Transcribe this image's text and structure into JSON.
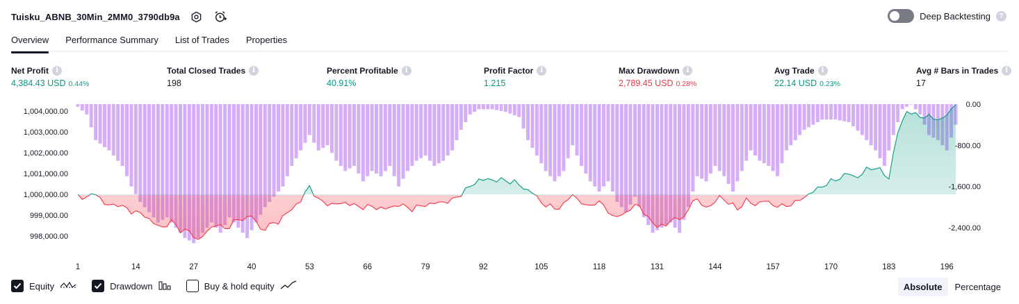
{
  "header": {
    "strategy_title": "Tuisku_ABNB_30Min_2MM0_3790db9a",
    "settings_icon": "gear-icon",
    "alert_icon": "alarm-clock-plus-icon",
    "deep_backtesting_label": "Deep Backtesting",
    "deep_backtesting_on": false,
    "help_icon": "question-icon"
  },
  "tabs": [
    {
      "label": "Overview",
      "active": true
    },
    {
      "label": "Performance Summary",
      "active": false
    },
    {
      "label": "List of Trades",
      "active": false
    },
    {
      "label": "Properties",
      "active": false
    }
  ],
  "metrics": [
    {
      "label": "Net Profit",
      "value": "4,384.43 USD",
      "pct": "0.44%",
      "color": "green"
    },
    {
      "label": "Total Closed Trades",
      "value": "198",
      "pct": "",
      "color": "dark"
    },
    {
      "label": "Percent Profitable",
      "value": "40.91%",
      "pct": "",
      "color": "green"
    },
    {
      "label": "Profit Factor",
      "value": "1.215",
      "pct": "",
      "color": "green"
    },
    {
      "label": "Max Drawdown",
      "value": "2,789.45 USD",
      "pct": "0.28%",
      "color": "red"
    },
    {
      "label": "Avg Trade",
      "value": "22.14 USD",
      "pct": "0.23%",
      "color": "green"
    },
    {
      "label": "Avg # Bars in Trades",
      "value": "17",
      "pct": "",
      "color": "dark"
    }
  ],
  "chart_data": {
    "type": "area",
    "left_axis": {
      "ticks": [
        "1,004,000.00",
        "1,003,000.00",
        "1,002,000.00",
        "1,001,000.00",
        "1,000,000.00",
        "999,000.00",
        "998,000.00"
      ],
      "values": [
        1004000,
        1003000,
        1002000,
        1001000,
        1000000,
        999000,
        998000
      ]
    },
    "right_axis": {
      "ticks": [
        "0.00",
        "-800.00",
        "-1,600.00",
        "-2,400.00"
      ],
      "values": [
        0,
        -800,
        -1600,
        -2400
      ]
    },
    "x_axis": {
      "ticks": [
        "1",
        "14",
        "27",
        "40",
        "53",
        "66",
        "79",
        "92",
        "105",
        "118",
        "131",
        "144",
        "157",
        "170",
        "183",
        "196"
      ],
      "values": [
        1,
        14,
        27,
        40,
        53,
        66,
        79,
        92,
        105,
        118,
        131,
        144,
        157,
        170,
        183,
        196
      ],
      "range": [
        1,
        198
      ]
    },
    "baseline": 1000000,
    "colors": {
      "profit": "#089981",
      "loss": "#f23645",
      "drawdown": "#c58df5"
    },
    "series": [
      {
        "name": "Equity",
        "anchors": [
          [
            1,
            1000000
          ],
          [
            3,
            999800
          ],
          [
            5,
            1000100
          ],
          [
            7,
            999500
          ],
          [
            10,
            999500
          ],
          [
            13,
            999200
          ],
          [
            16,
            999000
          ],
          [
            18,
            998600
          ],
          [
            20,
            998400
          ],
          [
            22,
            998700
          ],
          [
            24,
            998300
          ],
          [
            26,
            998200
          ],
          [
            28,
            997800
          ],
          [
            30,
            998200
          ],
          [
            32,
            998600
          ],
          [
            34,
            998300
          ],
          [
            36,
            998700
          ],
          [
            38,
            998800
          ],
          [
            40,
            999000
          ],
          [
            42,
            998300
          ],
          [
            44,
            998500
          ],
          [
            46,
            998700
          ],
          [
            48,
            999100
          ],
          [
            51,
            999700
          ],
          [
            53,
            1000400
          ],
          [
            55,
            999700
          ],
          [
            58,
            999500
          ],
          [
            61,
            999600
          ],
          [
            64,
            999400
          ],
          [
            67,
            999400
          ],
          [
            70,
            999300
          ],
          [
            73,
            999500
          ],
          [
            76,
            999300
          ],
          [
            79,
            999500
          ],
          [
            82,
            999600
          ],
          [
            85,
            999700
          ],
          [
            88,
            1000200
          ],
          [
            91,
            1000700
          ],
          [
            95,
            1000700
          ],
          [
            99,
            1000600
          ],
          [
            101,
            1000300
          ],
          [
            103,
            1000100
          ],
          [
            105,
            999600
          ],
          [
            108,
            999300
          ],
          [
            110,
            999500
          ],
          [
            112,
            1000000
          ],
          [
            115,
            999400
          ],
          [
            117,
            999600
          ],
          [
            119,
            999500
          ],
          [
            121,
            998900
          ],
          [
            123,
            999000
          ],
          [
            125,
            999300
          ],
          [
            127,
            999500
          ],
          [
            129,
            998800
          ],
          [
            131,
            998500
          ],
          [
            133,
            998500
          ],
          [
            135,
            998900
          ],
          [
            137,
            998800
          ],
          [
            139,
            999800
          ],
          [
            141,
            999500
          ],
          [
            143,
            999400
          ],
          [
            145,
            999900
          ],
          [
            147,
            999600
          ],
          [
            149,
            999300
          ],
          [
            151,
            999700
          ],
          [
            153,
            999500
          ],
          [
            155,
            999700
          ],
          [
            157,
            999500
          ],
          [
            159,
            999400
          ],
          [
            162,
            999600
          ],
          [
            165,
            1000000
          ],
          [
            168,
            1000400
          ],
          [
            171,
            1000700
          ],
          [
            174,
            1001000
          ],
          [
            176,
            1000800
          ],
          [
            178,
            1001200
          ],
          [
            180,
            1001300
          ],
          [
            183,
            1000800
          ],
          [
            185,
            1003000
          ],
          [
            187,
            1004000
          ],
          [
            189,
            1003800
          ],
          [
            192,
            1003700
          ],
          [
            195,
            1003600
          ],
          [
            198,
            1004300
          ]
        ]
      }
    ],
    "drawdown_bars": {
      "name": "Drawdown",
      "anchors": [
        [
          1,
          -50
        ],
        [
          3,
          -200
        ],
        [
          5,
          -700
        ],
        [
          8,
          -900
        ],
        [
          11,
          -1200
        ],
        [
          13,
          -1600
        ],
        [
          15,
          -1900
        ],
        [
          17,
          -2100
        ],
        [
          19,
          -2300
        ],
        [
          21,
          -2200
        ],
        [
          23,
          -2400
        ],
        [
          25,
          -2600
        ],
        [
          27,
          -2700
        ],
        [
          29,
          -2500
        ],
        [
          31,
          -2300
        ],
        [
          33,
          -2500
        ],
        [
          35,
          -2200
        ],
        [
          37,
          -2400
        ],
        [
          39,
          -2600
        ],
        [
          41,
          -2300
        ],
        [
          43,
          -2000
        ],
        [
          45,
          -1800
        ],
        [
          47,
          -1600
        ],
        [
          49,
          -1200
        ],
        [
          51,
          -900
        ],
        [
          53,
          -600
        ],
        [
          55,
          -900
        ],
        [
          57,
          -800
        ],
        [
          59,
          -1100
        ],
        [
          61,
          -1300
        ],
        [
          63,
          -1200
        ],
        [
          65,
          -1500
        ],
        [
          67,
          -1300
        ],
        [
          69,
          -1400
        ],
        [
          71,
          -1200
        ],
        [
          73,
          -1600
        ],
        [
          75,
          -1300
        ],
        [
          77,
          -1100
        ],
        [
          79,
          -1000
        ],
        [
          81,
          -1200
        ],
        [
          83,
          -1100
        ],
        [
          85,
          -900
        ],
        [
          87,
          -500
        ],
        [
          89,
          -200
        ],
        [
          91,
          -100
        ],
        [
          94,
          -100
        ],
        [
          97,
          -150
        ],
        [
          100,
          -250
        ],
        [
          102,
          -700
        ],
        [
          104,
          -1000
        ],
        [
          106,
          -1300
        ],
        [
          108,
          -1500
        ],
        [
          110,
          -1300
        ],
        [
          112,
          -800
        ],
        [
          114,
          -1200
        ],
        [
          116,
          -1500
        ],
        [
          118,
          -1700
        ],
        [
          120,
          -1500
        ],
        [
          122,
          -1900
        ],
        [
          124,
          -2100
        ],
        [
          126,
          -1800
        ],
        [
          128,
          -2200
        ],
        [
          130,
          -2500
        ],
        [
          132,
          -2400
        ],
        [
          134,
          -2300
        ],
        [
          136,
          -2500
        ],
        [
          138,
          -2000
        ],
        [
          140,
          -1400
        ],
        [
          142,
          -1500
        ],
        [
          144,
          -1200
        ],
        [
          146,
          -1400
        ],
        [
          148,
          -1700
        ],
        [
          150,
          -1300
        ],
        [
          152,
          -900
        ],
        [
          154,
          -1100
        ],
        [
          156,
          -1200
        ],
        [
          158,
          -1400
        ],
        [
          160,
          -900
        ],
        [
          162,
          -700
        ],
        [
          164,
          -500
        ],
        [
          166,
          -400
        ],
        [
          168,
          -300
        ],
        [
          171,
          -300
        ],
        [
          174,
          -350
        ],
        [
          177,
          -600
        ],
        [
          180,
          -900
        ],
        [
          182,
          -1200
        ],
        [
          184,
          -600
        ],
        [
          186,
          -100
        ],
        [
          188,
          0
        ],
        [
          190,
          -200
        ],
        [
          192,
          -600
        ],
        [
          194,
          -700
        ],
        [
          196,
          -900
        ],
        [
          198,
          -400
        ]
      ]
    }
  },
  "legend": [
    {
      "label": "Equity",
      "checked": true,
      "icon": "equity-line-icon"
    },
    {
      "label": "Drawdown",
      "checked": true,
      "icon": "drawdown-bars-icon"
    },
    {
      "label": "Buy & hold equity",
      "checked": false,
      "icon": "buy-hold-line-icon"
    }
  ],
  "mode_buttons": [
    {
      "label": "Absolute",
      "active": true
    },
    {
      "label": "Percentage",
      "active": false
    }
  ]
}
